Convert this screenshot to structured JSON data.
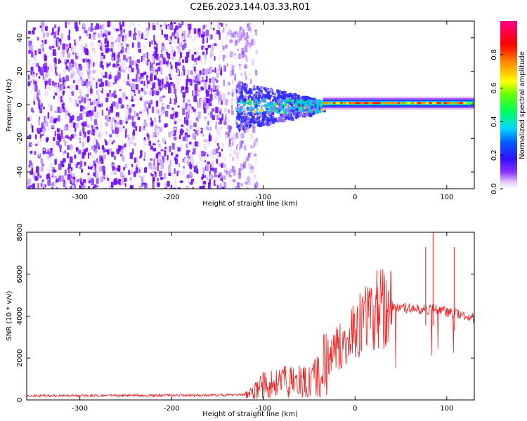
{
  "title": "C2E6.2023.144.03.33.R01",
  "colors": {
    "noise": "#7010f0",
    "snr_line": "#ee2020",
    "axis": "#000000"
  },
  "colorbar": {
    "label": "Normalized spectral amplitude",
    "ticks": [
      "0.0",
      "0.2",
      "0.4",
      "0.6",
      "0.8"
    ],
    "tick_values": [
      0.0,
      0.2,
      0.4,
      0.6,
      0.8
    ],
    "range": [
      0,
      1
    ],
    "colormap": [
      "#ffffff",
      "#e8d8ff",
      "#9a5cff",
      "#6a00ff",
      "#2030ff",
      "#00c8ff",
      "#00ff80",
      "#60ff00",
      "#ffff00",
      "#ff8000",
      "#ff0000",
      "#ff0080"
    ]
  },
  "chart_data": [
    {
      "type": "heatmap",
      "xlabel": "Height of straight line (km)",
      "ylabel": "Frequency (Hz)",
      "xlim": [
        -358,
        130
      ],
      "ylim": [
        -50,
        50
      ],
      "x_ticks": [
        "-300",
        "-200",
        "-100",
        "0",
        "100"
      ],
      "x_tick_values": [
        -300,
        -200,
        -100,
        0,
        100
      ],
      "y_ticks": [
        "-40",
        "-20",
        "0",
        "20",
        "40"
      ],
      "y_tick_values": [
        -40,
        -20,
        0,
        20,
        40
      ],
      "regions": [
        {
          "x": [
            -358,
            -122
          ],
          "freq": [
            -50,
            50
          ],
          "amplitude": 0.15
        },
        {
          "x": [
            -130,
            -35
          ],
          "freq": [
            -12,
            10
          ],
          "amplitude": 0.45
        },
        {
          "x": [
            -35,
            130
          ],
          "freq": [
            -3,
            3
          ],
          "amplitude": 0.6
        }
      ]
    },
    {
      "type": "line",
      "xlabel": "Height of straight line (km)",
      "ylabel": "SNR (10 * v/v)",
      "xlim": [
        -358,
        130
      ],
      "ylim": [
        0,
        8000
      ],
      "x_ticks": [
        "-300",
        "-200",
        "-100",
        "0",
        "100"
      ],
      "x_tick_values": [
        -300,
        -200,
        -100,
        0,
        100
      ],
      "y_ticks": [
        "0",
        "2000",
        "4000",
        "6000",
        "8000"
      ],
      "y_tick_values": [
        0,
        2000,
        4000,
        6000,
        8000
      ],
      "series": [
        {
          "x": [
            -358,
            -300,
            -250,
            -200,
            -150,
            -120,
            -110,
            -100,
            -90,
            -80,
            -70,
            -60,
            -50,
            -40,
            -35,
            -30,
            -25,
            -20,
            -15,
            -10,
            -5,
            0,
            5,
            10,
            15,
            20,
            25,
            30,
            35,
            40,
            45,
            50,
            55,
            60,
            65,
            70,
            75,
            80,
            85,
            90,
            95,
            100,
            105,
            110,
            115,
            120,
            125,
            130
          ],
          "values": [
            200,
            200,
            210,
            220,
            230,
            250,
            400,
            700,
            800,
            850,
            900,
            900,
            950,
            1200,
            1600,
            2000,
            2300,
            2500,
            2600,
            2800,
            3000,
            3400,
            3600,
            3800,
            4000,
            4200,
            4300,
            4350,
            4400,
            4450,
            4400,
            4350,
            4400,
            4350,
            4400,
            4300,
            4400,
            4300,
            4350,
            4300,
            4250,
            4200,
            4150,
            4100,
            4050,
            4000,
            3950,
            3900
          ]
        }
      ],
      "spikes": [
        {
          "x": 39,
          "value": 6100
        },
        {
          "x": 77,
          "value": 7300
        },
        {
          "x": 85,
          "value": 8000
        },
        {
          "x": 108,
          "value": 7300
        }
      ]
    }
  ]
}
